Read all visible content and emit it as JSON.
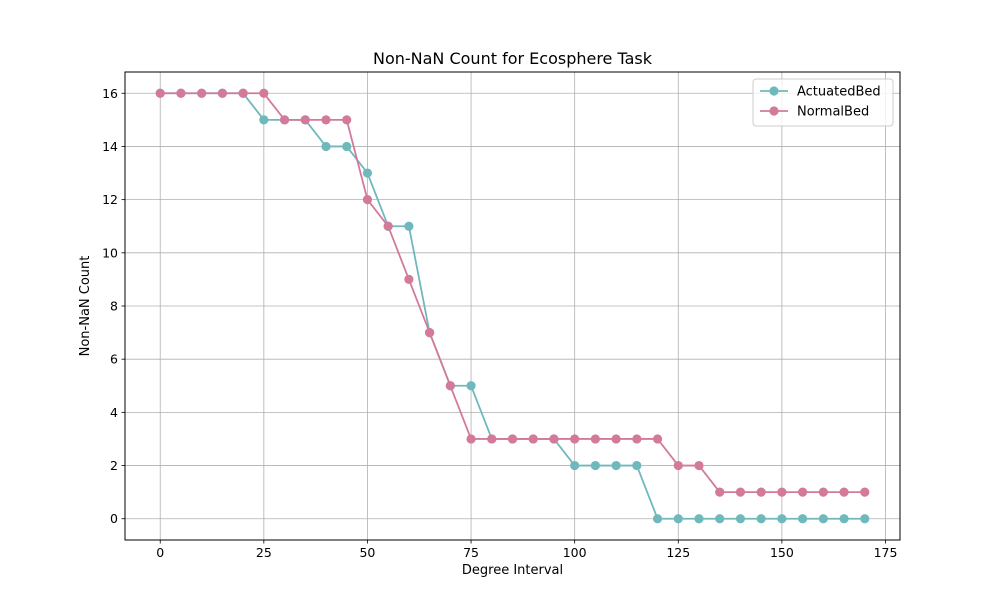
{
  "chart_data": {
    "type": "line",
    "title": "Non-NaN Count for Ecosphere Task",
    "xlabel": "Degree Interval",
    "ylabel": "Non-NaN Count",
    "xlim": [
      -8.5,
      178.5
    ],
    "ylim": [
      -0.8,
      16.8
    ],
    "xticks": [
      0,
      25,
      50,
      75,
      100,
      125,
      150,
      175
    ],
    "yticks": [
      0,
      2,
      4,
      6,
      8,
      10,
      12,
      14,
      16
    ],
    "grid": true,
    "legend_position": "top-right",
    "x": [
      0,
      5,
      10,
      15,
      20,
      25,
      30,
      35,
      40,
      45,
      50,
      55,
      60,
      65,
      70,
      75,
      80,
      85,
      90,
      95,
      100,
      105,
      110,
      115,
      120,
      125,
      130,
      135,
      140,
      145,
      150,
      155,
      160,
      165,
      170
    ],
    "series": [
      {
        "name": "ActuatedBed",
        "color": "#6fb9bd",
        "marker": "circle",
        "values": [
          16,
          16,
          16,
          16,
          16,
          15,
          15,
          15,
          14,
          14,
          13,
          11,
          11,
          7,
          5,
          5,
          3,
          3,
          3,
          3,
          2,
          2,
          2,
          2,
          0,
          0,
          0,
          0,
          0,
          0,
          0,
          0,
          0,
          0,
          0
        ]
      },
      {
        "name": "NormalBed",
        "color": "#d37a9a",
        "marker": "circle",
        "values": [
          16,
          16,
          16,
          16,
          16,
          16,
          15,
          15,
          15,
          15,
          12,
          11,
          9,
          7,
          5,
          3,
          3,
          3,
          3,
          3,
          3,
          3,
          3,
          3,
          3,
          2,
          2,
          1,
          1,
          1,
          1,
          1,
          1,
          1,
          1
        ]
      }
    ]
  }
}
